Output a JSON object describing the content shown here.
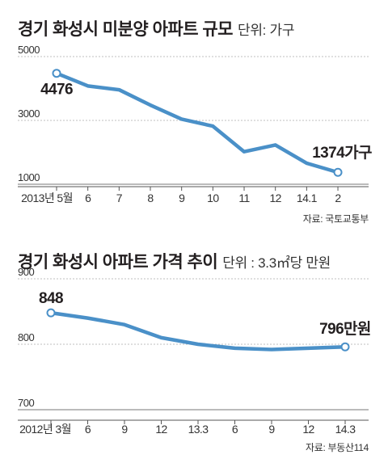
{
  "chart_data": [
    {
      "type": "line",
      "title": "경기 화성시 미분양 아파트 규모",
      "unit": "단위: 가구",
      "source": "자료: 국토교통부",
      "ylim": [
        1000,
        5000
      ],
      "yticks": [
        "5000",
        "3000",
        "1000"
      ],
      "ytick_values": [
        5000,
        3000,
        1000
      ],
      "categories": [
        "2013년 5월",
        "6",
        "7",
        "8",
        "9",
        "10",
        "11",
        "12",
        "14.1",
        "2"
      ],
      "series": [
        {
          "values": [
            4476,
            4080,
            3960,
            3480,
            3040,
            2820,
            2020,
            2230,
            1660,
            1374
          ]
        }
      ],
      "annotations": [
        {
          "index": 0,
          "text": "4476"
        },
        {
          "index": 9,
          "text": "1374가구"
        }
      ],
      "grid": true,
      "line_color": "#4a90c8"
    },
    {
      "type": "line",
      "title": "경기 화성시 아파트 가격 추이",
      "unit": "단위 : 3.3㎡당 만원",
      "source": "자료: 부동산114",
      "ylim": [
        700,
        900
      ],
      "yticks": [
        "900",
        "800",
        "700"
      ],
      "ytick_values": [
        900,
        800,
        700
      ],
      "categories": [
        "2012년 3월",
        "6",
        "9",
        "12",
        "13.3",
        "6",
        "9",
        "12",
        "14.3"
      ],
      "series": [
        {
          "values": [
            848,
            840,
            830,
            810,
            800,
            794,
            792,
            794,
            796
          ]
        }
      ],
      "annotations": [
        {
          "index": 0,
          "text": "848"
        },
        {
          "index": 8,
          "text": "796만원"
        }
      ],
      "grid": true,
      "line_color": "#4a90c8"
    }
  ]
}
